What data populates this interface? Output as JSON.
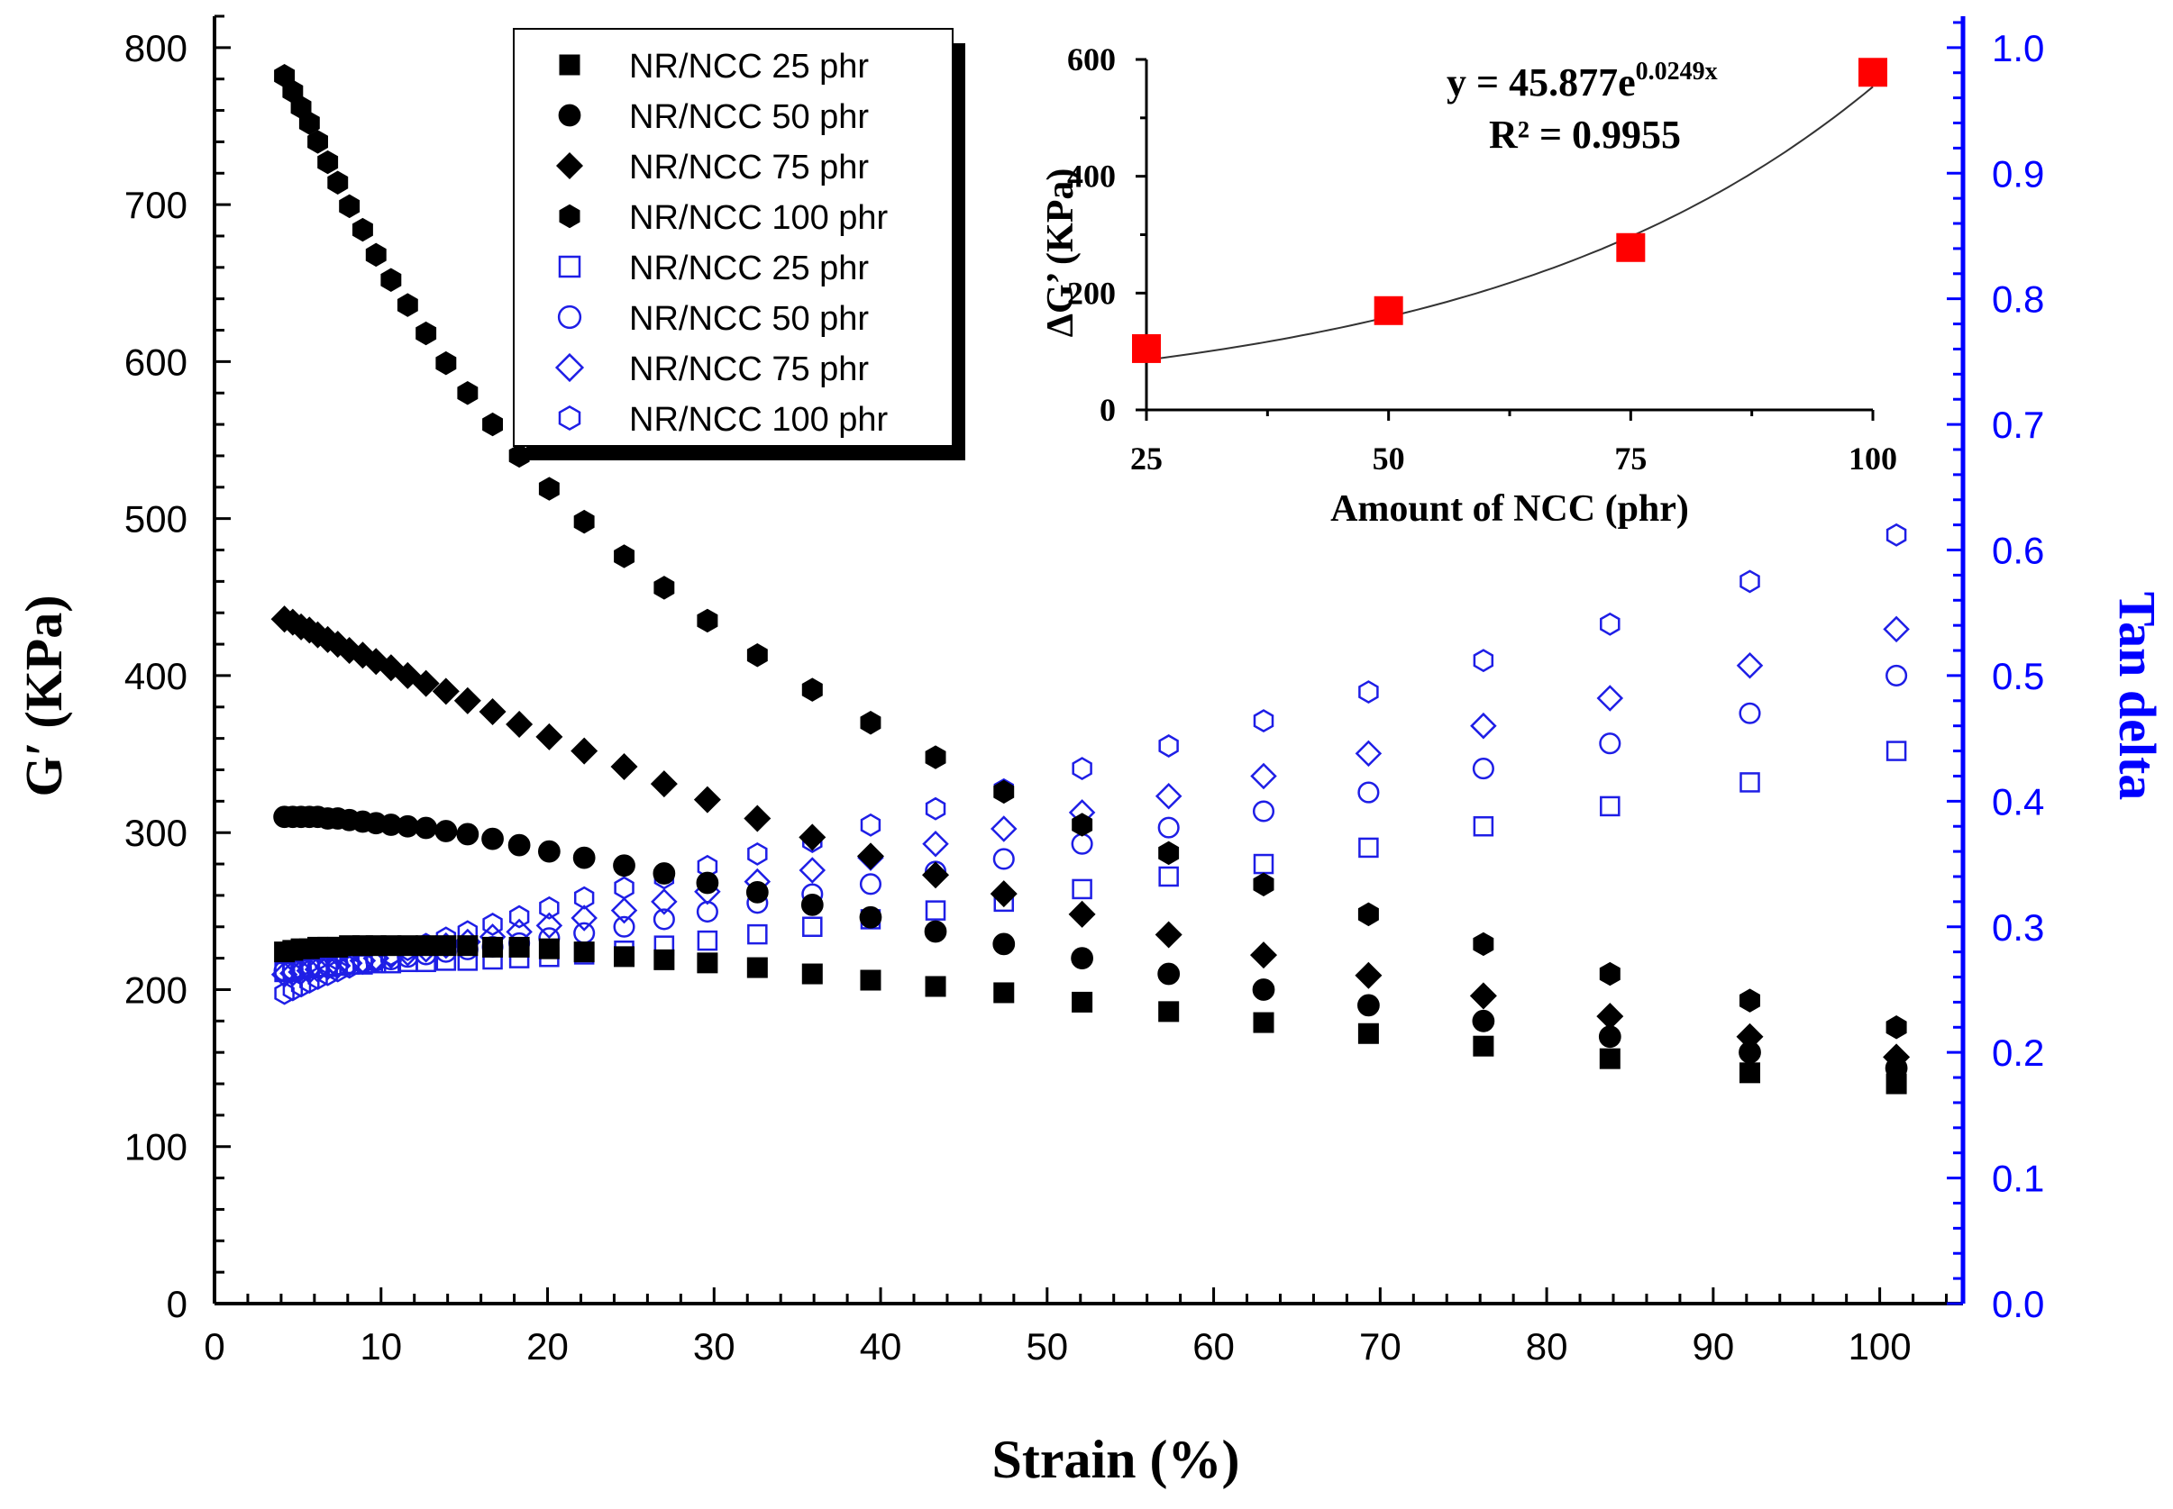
{
  "chart_data": [
    {
      "type": "scatter",
      "role": "main",
      "xlabel": "Strain (%)",
      "ylabel": "G′ (KPa)",
      "y2label": "Tan delta",
      "xlim": [
        0,
        105
      ],
      "ylim": [
        0,
        820
      ],
      "y2lim": [
        0,
        1.025
      ],
      "xticks": [
        "0",
        "10",
        "20",
        "30",
        "40",
        "50",
        "60",
        "70",
        "80",
        "90",
        "100"
      ],
      "yticks": [
        "0",
        "100",
        "200",
        "300",
        "400",
        "500",
        "600",
        "700",
        "800"
      ],
      "y2ticks": [
        "0.0",
        "0.1",
        "0.2",
        "0.3",
        "0.4",
        "0.5",
        "0.6",
        "0.7",
        "0.8",
        "0.9",
        "1.0"
      ],
      "colors": {
        "gprime": "#000000",
        "tandelta": "#1e1ee6",
        "right_axis": "#0000ff"
      },
      "legend": {
        "position": "top-left",
        "entries": [
          "NR/NCC 25 phr",
          "NR/NCC 50 phr",
          "NR/NCC 75 phr",
          "NR/NCC 100 phr",
          "NR/NCC 25 phr",
          "NR/NCC 50 phr",
          "NR/NCC 75 phr",
          "NR/NCC 100 phr"
        ]
      },
      "series": [
        {
          "name": "NR/NCC 25 phr",
          "axis": "left",
          "marker": "square",
          "filled": true,
          "x": [
            4.2,
            4.7,
            5.2,
            5.7,
            6.2,
            6.8,
            7.4,
            8.1,
            8.9,
            9.7,
            10.6,
            11.6,
            12.7,
            13.9,
            15.2,
            16.7,
            18.3,
            20.1,
            22.2,
            24.6,
            27.0,
            29.6,
            32.6,
            35.9,
            39.4,
            43.3,
            47.4,
            52.1,
            57.3,
            63.0,
            69.3,
            76.2,
            83.8,
            92.2,
            101.0
          ],
          "values": [
            224,
            225,
            226,
            226,
            227,
            227,
            227,
            228,
            228,
            228,
            228,
            228,
            228,
            228,
            228,
            227,
            227,
            226,
            224,
            221,
            219,
            217,
            214,
            210,
            206,
            202,
            198,
            192,
            186,
            179,
            172,
            164,
            156,
            147,
            140
          ]
        },
        {
          "name": "NR/NCC 50 phr",
          "axis": "left",
          "marker": "circle",
          "filled": true,
          "x": [
            4.2,
            4.7,
            5.2,
            5.7,
            6.2,
            6.8,
            7.4,
            8.1,
            8.9,
            9.7,
            10.6,
            11.6,
            12.7,
            13.9,
            15.2,
            16.7,
            18.3,
            20.1,
            22.2,
            24.6,
            27.0,
            29.6,
            32.6,
            35.9,
            39.4,
            43.3,
            47.4,
            52.1,
            57.3,
            63.0,
            69.3,
            76.2,
            83.8,
            92.2,
            101.0
          ],
          "values": [
            310,
            310,
            310,
            310,
            310,
            309,
            309,
            308,
            307,
            306,
            305,
            304,
            303,
            301,
            299,
            296,
            292,
            288,
            284,
            279,
            274,
            268,
            262,
            254,
            246,
            237,
            229,
            220,
            210,
            200,
            190,
            180,
            170,
            160,
            150
          ]
        },
        {
          "name": "NR/NCC 75 phr",
          "axis": "left",
          "marker": "diamond",
          "filled": true,
          "x": [
            4.2,
            4.7,
            5.2,
            5.7,
            6.2,
            6.8,
            7.4,
            8.1,
            8.9,
            9.7,
            10.6,
            11.6,
            12.7,
            13.9,
            15.2,
            16.7,
            18.3,
            20.1,
            22.2,
            24.6,
            27.0,
            29.6,
            32.6,
            35.9,
            39.4,
            43.3,
            47.4,
            52.1,
            57.3,
            63.0,
            69.3,
            76.2,
            83.8,
            92.2,
            101.0
          ],
          "values": [
            436,
            434,
            431,
            429,
            426,
            423,
            420,
            416,
            413,
            409,
            405,
            400,
            395,
            390,
            384,
            377,
            369,
            361,
            352,
            342,
            331,
            321,
            309,
            297,
            285,
            273,
            261,
            248,
            235,
            222,
            209,
            196,
            183,
            170,
            157
          ]
        },
        {
          "name": "NR/NCC 100 phr",
          "axis": "left",
          "marker": "hexagon",
          "filled": true,
          "x": [
            4.2,
            4.7,
            5.2,
            5.7,
            6.2,
            6.8,
            7.4,
            8.1,
            8.9,
            9.7,
            10.6,
            11.6,
            12.7,
            13.9,
            15.2,
            16.7,
            18.3,
            20.1,
            22.2,
            24.6,
            27.0,
            29.6,
            32.6,
            35.9,
            39.4,
            43.3,
            47.4,
            52.1,
            57.3,
            63.0,
            69.3,
            76.2,
            83.8,
            92.2,
            101.0
          ],
          "values": [
            782,
            772,
            762,
            752,
            740,
            727,
            714,
            699,
            684,
            668,
            652,
            636,
            618,
            599,
            580,
            560,
            540,
            519,
            498,
            476,
            456,
            435,
            413,
            391,
            370,
            348,
            326,
            305,
            287,
            267,
            248,
            229,
            210,
            193,
            176
          ]
        },
        {
          "name": "NR/NCC 25 phr",
          "axis": "right",
          "marker": "square",
          "filled": false,
          "x": [
            4.2,
            4.7,
            5.2,
            5.7,
            6.2,
            6.8,
            7.4,
            8.1,
            8.9,
            9.7,
            10.6,
            11.6,
            12.7,
            13.9,
            15.2,
            16.7,
            18.3,
            20.1,
            22.2,
            24.6,
            27.0,
            29.6,
            32.6,
            35.9,
            39.4,
            43.3,
            47.4,
            52.1,
            57.3,
            63.0,
            69.3,
            76.2,
            83.8,
            92.2,
            101.0
          ],
          "values": [
            0.264,
            0.265,
            0.266,
            0.267,
            0.268,
            0.268,
            0.269,
            0.27,
            0.27,
            0.271,
            0.271,
            0.272,
            0.272,
            0.273,
            0.273,
            0.274,
            0.275,
            0.276,
            0.278,
            0.281,
            0.285,
            0.289,
            0.294,
            0.3,
            0.306,
            0.313,
            0.32,
            0.33,
            0.34,
            0.35,
            0.363,
            0.38,
            0.396,
            0.415,
            0.44
          ]
        },
        {
          "name": "NR/NCC 50 phr",
          "axis": "right",
          "marker": "circle",
          "filled": false,
          "x": [
            4.2,
            4.7,
            5.2,
            5.7,
            6.2,
            6.8,
            7.4,
            8.1,
            8.9,
            9.7,
            10.6,
            11.6,
            12.7,
            13.9,
            15.2,
            16.7,
            18.3,
            20.1,
            22.2,
            24.6,
            27.0,
            29.6,
            32.6,
            35.9,
            39.4,
            43.3,
            47.4,
            52.1,
            57.3,
            63.0,
            69.3,
            76.2,
            83.8,
            92.2,
            101.0
          ],
          "values": [
            0.265,
            0.266,
            0.267,
            0.268,
            0.268,
            0.269,
            0.27,
            0.271,
            0.272,
            0.273,
            0.274,
            0.276,
            0.278,
            0.28,
            0.282,
            0.284,
            0.287,
            0.291,
            0.295,
            0.3,
            0.306,
            0.312,
            0.319,
            0.326,
            0.334,
            0.344,
            0.354,
            0.366,
            0.379,
            0.392,
            0.407,
            0.426,
            0.446,
            0.47,
            0.5
          ]
        },
        {
          "name": "NR/NCC 75 phr",
          "axis": "right",
          "marker": "diamond",
          "filled": false,
          "x": [
            4.2,
            4.7,
            5.2,
            5.7,
            6.2,
            6.8,
            7.4,
            8.1,
            8.9,
            9.7,
            10.6,
            11.6,
            12.7,
            13.9,
            15.2,
            16.7,
            18.3,
            20.1,
            22.2,
            24.6,
            27.0,
            29.6,
            32.6,
            35.9,
            39.4,
            43.3,
            47.4,
            52.1,
            57.3,
            63.0,
            69.3,
            76.2,
            83.8,
            92.2,
            101.0
          ],
          "values": [
            0.262,
            0.263,
            0.264,
            0.265,
            0.266,
            0.268,
            0.269,
            0.271,
            0.273,
            0.275,
            0.277,
            0.279,
            0.282,
            0.285,
            0.288,
            0.292,
            0.296,
            0.301,
            0.307,
            0.313,
            0.32,
            0.328,
            0.336,
            0.345,
            0.355,
            0.366,
            0.378,
            0.391,
            0.404,
            0.42,
            0.438,
            0.46,
            0.482,
            0.508,
            0.537
          ]
        },
        {
          "name": "NR/NCC 100 phr",
          "axis": "right",
          "marker": "hexagon",
          "filled": false,
          "x": [
            4.2,
            4.7,
            5.2,
            5.7,
            6.2,
            6.8,
            7.4,
            8.1,
            8.9,
            9.7,
            10.6,
            11.6,
            12.7,
            13.9,
            15.2,
            16.7,
            18.3,
            20.1,
            22.2,
            24.6,
            27.0,
            29.6,
            32.6,
            35.9,
            39.4,
            43.3,
            47.4,
            52.1,
            57.3,
            63.0,
            69.3,
            76.2,
            83.8,
            92.2,
            101.0
          ],
          "values": [
            0.247,
            0.25,
            0.253,
            0.256,
            0.259,
            0.262,
            0.265,
            0.268,
            0.271,
            0.274,
            0.278,
            0.282,
            0.286,
            0.291,
            0.296,
            0.302,
            0.308,
            0.315,
            0.323,
            0.331,
            0.339,
            0.348,
            0.358,
            0.368,
            0.381,
            0.394,
            0.409,
            0.426,
            0.444,
            0.464,
            0.487,
            0.512,
            0.541,
            0.575,
            0.612
          ]
        }
      ]
    },
    {
      "type": "scatter",
      "role": "inset",
      "position": "top-right",
      "xlabel": "Amount of NCC (phr)",
      "ylabel": "ΔG’ (KPa)",
      "xlim": [
        25,
        100
      ],
      "ylim": [
        0,
        600
      ],
      "xticks": [
        "25",
        "50",
        "75",
        "100"
      ],
      "yticks": [
        "0",
        "200",
        "400",
        "600"
      ],
      "categories": [
        25,
        50,
        75,
        100
      ],
      "values": [
        105,
        170,
        278,
        578
      ],
      "marker_color": "#ff0000",
      "fit": {
        "type": "exponential",
        "a": 45.877,
        "b": 0.0249
      },
      "equation_prefix": "y = 45.877e",
      "equation_exponent": "0.0249x",
      "r_squared_label": "R² = 0.9955"
    }
  ]
}
